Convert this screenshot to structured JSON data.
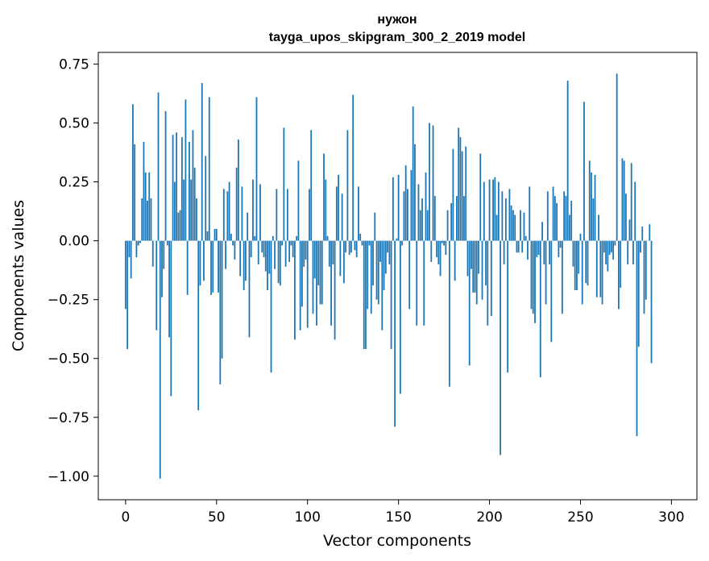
{
  "chart_data": {
    "type": "bar",
    "title_lines": [
      "нужон",
      "tayga_upos_skipgram_300_2_2019 model"
    ],
    "xlabel": "Vector components",
    "ylabel": "Components values",
    "xlim": [
      -15,
      314
    ],
    "ylim": [
      -1.1,
      0.8
    ],
    "xticks": [
      0,
      50,
      100,
      150,
      200,
      250,
      300
    ],
    "yticks": [
      -1.0,
      -0.75,
      -0.5,
      -0.25,
      0.0,
      0.25,
      0.5,
      0.75
    ],
    "ytick_labels": [
      "−1.00",
      "−0.75",
      "−0.50",
      "−0.25",
      "0.00",
      "0.25",
      "0.50",
      "0.75"
    ],
    "bar_color": "#1f77b4",
    "grid": false,
    "values": [
      -0.29,
      -0.46,
      -0.07,
      -0.16,
      0.58,
      0.41,
      -0.07,
      -0.02,
      -0.01,
      0.18,
      0.42,
      0.29,
      0.17,
      0.29,
      0.18,
      -0.11,
      0.0,
      -0.38,
      0.63,
      -1.01,
      -0.24,
      -0.12,
      0.55,
      -0.02,
      -0.41,
      -0.66,
      0.45,
      0.25,
      0.46,
      0.12,
      0.13,
      0.44,
      0.26,
      0.6,
      -0.23,
      0.42,
      0.26,
      0.47,
      0.31,
      0.18,
      -0.72,
      -0.19,
      0.67,
      -0.17,
      0.36,
      0.04,
      0.61,
      -0.23,
      -0.22,
      0.05,
      0.05,
      -0.22,
      -0.61,
      -0.5,
      0.22,
      -0.12,
      0.21,
      0.25,
      0.03,
      -0.02,
      -0.08,
      0.31,
      0.43,
      -0.15,
      0.23,
      -0.21,
      -0.17,
      0.12,
      -0.41,
      -0.07,
      0.26,
      0.02,
      0.61,
      -0.1,
      0.24,
      -0.05,
      -0.07,
      -0.13,
      -0.21,
      -0.14,
      -0.56,
      0.02,
      -0.12,
      0.22,
      -0.18,
      -0.19,
      -0.02,
      0.48,
      -0.11,
      0.22,
      -0.09,
      -0.02,
      -0.07,
      -0.42,
      0.02,
      0.34,
      -0.38,
      -0.28,
      -0.11,
      -0.08,
      -0.37,
      0.22,
      0.47,
      -0.31,
      -0.16,
      -0.36,
      -0.19,
      -0.27,
      -0.27,
      0.37,
      0.26,
      0.02,
      -0.11,
      -0.36,
      -0.1,
      -0.42,
      0.23,
      0.28,
      -0.15,
      0.2,
      -0.18,
      -0.05,
      0.47,
      -0.06,
      -0.05,
      0.62,
      -0.04,
      -0.07,
      0.23,
      0.03,
      -0.02,
      -0.46,
      -0.46,
      -0.29,
      -0.02,
      -0.31,
      -0.19,
      0.12,
      -0.25,
      -0.27,
      -0.09,
      -0.38,
      -0.21,
      -0.14,
      -0.05,
      -0.1,
      -0.46,
      0.27,
      -0.79,
      0.01,
      0.28,
      -0.65,
      -0.02,
      0.21,
      0.32,
      0.22,
      -0.29,
      0.3,
      0.57,
      0.41,
      -0.36,
      0.24,
      0.13,
      0.18,
      -0.36,
      0.29,
      0.13,
      0.5,
      -0.09,
      0.49,
      0.19,
      -0.07,
      -0.1,
      -0.15,
      -0.01,
      -0.02,
      -0.06,
      0.13,
      -0.62,
      0.16,
      0.39,
      -0.17,
      0.19,
      0.48,
      0.44,
      0.38,
      0.19,
      0.4,
      -0.15,
      -0.53,
      -0.12,
      -0.22,
      -0.22,
      -0.27,
      -0.14,
      0.37,
      -0.25,
      0.25,
      -0.19,
      -0.36,
      0.26,
      -0.32,
      0.26,
      0.27,
      0.11,
      0.25,
      -0.91,
      0.21,
      -0.1,
      0.18,
      -0.56,
      0.22,
      0.15,
      0.13,
      0.11,
      -0.05,
      -0.05,
      0.13,
      -0.05,
      0.12,
      0.02,
      -0.08,
      0.23,
      -0.29,
      -0.31,
      -0.35,
      -0.07,
      -0.06,
      -0.58,
      0.08,
      -0.1,
      -0.27,
      0.21,
      -0.1,
      -0.43,
      0.23,
      0.19,
      0.16,
      -0.07,
      -0.03,
      -0.31,
      0.21,
      0.19,
      0.68,
      0.11,
      0.17,
      -0.11,
      -0.21,
      -0.21,
      -0.14,
      0.03,
      -0.27,
      0.59,
      -0.18,
      -0.19,
      0.34,
      0.29,
      0.18,
      0.28,
      -0.24,
      0.11,
      -0.24,
      -0.27,
      -0.05,
      -0.1,
      -0.13,
      -0.06,
      -0.05,
      -0.08,
      -0.02,
      0.71,
      -0.29,
      -0.2,
      0.35,
      0.34,
      0.2,
      -0.1,
      0.09,
      0.33,
      -0.1,
      0.25,
      -0.83,
      -0.45,
      -0.05,
      0.06,
      -0.31,
      -0.25,
      0.0,
      0.07,
      -0.52
    ]
  }
}
